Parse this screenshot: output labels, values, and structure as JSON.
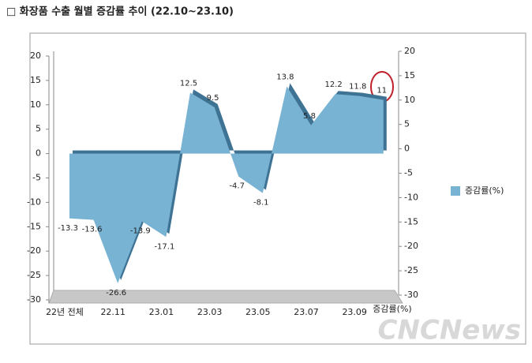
{
  "chart_data": {
    "type": "area3d",
    "title": "□ 화장품 수출 월별 증감률 추이 (22.10~23.10)",
    "categories": [
      "22년 전체",
      null,
      "22.11",
      null,
      "23.01",
      null,
      "23.03",
      null,
      "23.05",
      null,
      "23.07",
      null,
      "23.09",
      null
    ],
    "x_label": "증감률(%)",
    "series": [
      {
        "name": "증감률(%)",
        "color": "#78b3d3",
        "values": [
          -13.3,
          -13.6,
          -26.6,
          -13.9,
          -17.1,
          12.5,
          9.5,
          -4.7,
          -8.1,
          13.8,
          5.8,
          12.2,
          11.8,
          11
        ]
      }
    ],
    "ylim": [
      -30,
      20
    ],
    "yticks": [
      -30,
      -25,
      -20,
      -15,
      -10,
      -5,
      0,
      5,
      10,
      15,
      20
    ],
    "y2lim": [
      -30,
      20
    ],
    "y2ticks": [
      -30,
      -25,
      -20,
      -15,
      -10,
      -5,
      0,
      5,
      10,
      15,
      20
    ],
    "legend": "right",
    "watermark": "CNCNews"
  }
}
